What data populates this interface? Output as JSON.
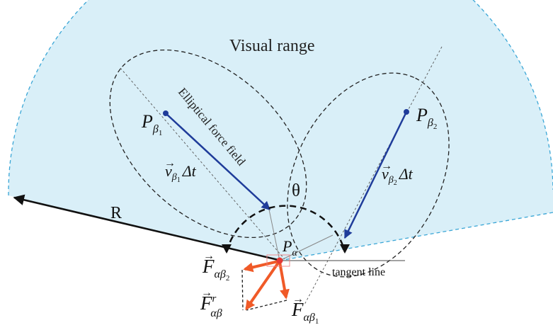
{
  "diagram": {
    "visual_range_label": "Visual range",
    "force_field_label": "Elliptical force field",
    "radius_label": "R",
    "angle_label": "θ",
    "tangent_label": "tangent line",
    "p_alpha": {
      "base": "P",
      "sub": "α"
    },
    "p_beta1": {
      "base": "P",
      "sub": "β",
      "subsub": "1"
    },
    "p_beta2": {
      "base": "P",
      "sub": "β",
      "subsub": "2"
    },
    "v_beta1": {
      "base": "v",
      "sub": "β",
      "subsub": "1",
      "suffix": "Δt"
    },
    "v_beta2": {
      "base": "v",
      "sub": "β",
      "subsub": "2",
      "suffix": "Δt"
    },
    "f_ab1": {
      "base": "F",
      "sub": "αβ",
      "subsub": "1"
    },
    "f_ab2": {
      "base": "F",
      "sub": "αβ",
      "subsub": "2"
    },
    "f_r": {
      "base": "F",
      "sup": "r",
      "sub": "αβ"
    },
    "colors": {
      "visual_range_fill": "#d9eff8",
      "visual_range_edge": "#3aa6d6",
      "velocity_arrow": "#1f3c9a",
      "force_arrow": "#f05a28",
      "agent_point": "#e53935",
      "black": "#111111"
    }
  }
}
